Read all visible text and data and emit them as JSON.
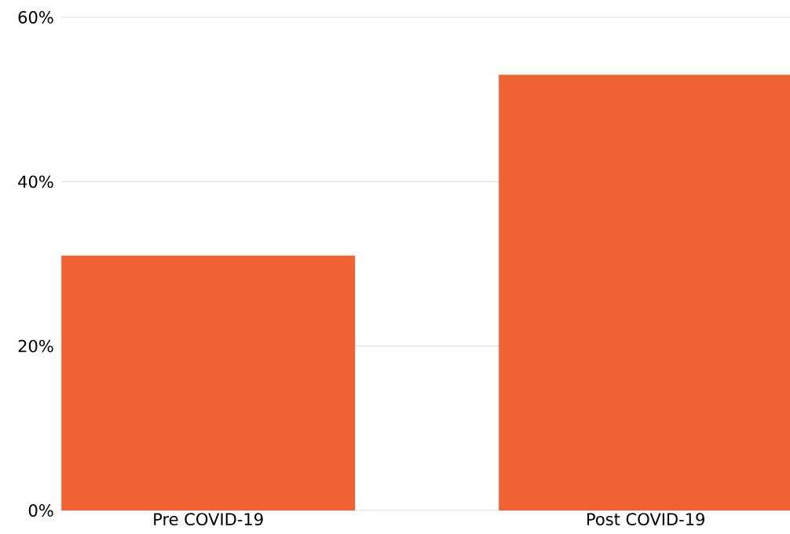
{
  "chart_data": {
    "type": "bar",
    "categories": [
      "Pre COVID-19",
      "Post COVID-19"
    ],
    "values": [
      31,
      53
    ],
    "color": "#f06234",
    "ylim": [
      0,
      60
    ],
    "yticks": [
      {
        "value": 0,
        "label": "0%"
      },
      {
        "value": 20,
        "label": "20%"
      },
      {
        "value": 40,
        "label": "40%"
      },
      {
        "value": 60,
        "label": "60%"
      }
    ],
    "grid": "y"
  }
}
